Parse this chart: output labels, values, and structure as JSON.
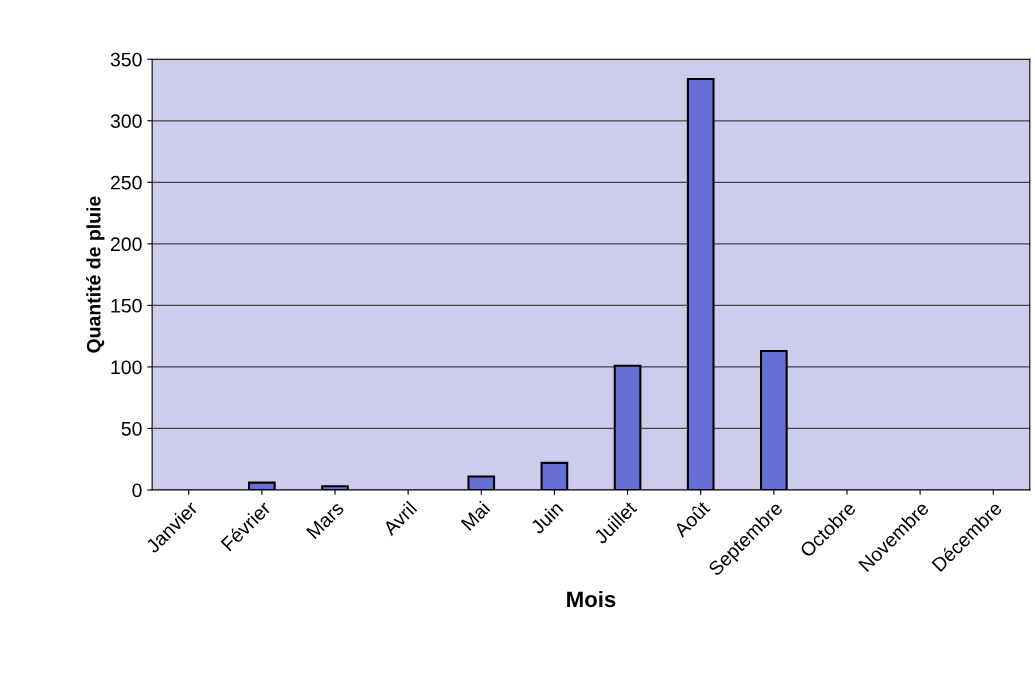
{
  "chart_data": {
    "type": "bar",
    "xlabel": "Mois",
    "ylabel": "Quantité de pluie",
    "categories": [
      "Janvier",
      "Février",
      "Mars",
      "Avril",
      "Mai",
      "Juin",
      "Juillet",
      "Août",
      "Septembre",
      "Octobre",
      "Novembre",
      "Décembre"
    ],
    "values": [
      0,
      6,
      3,
      0,
      11,
      22,
      101,
      334,
      113,
      0,
      0,
      0
    ],
    "color": "#6670d4",
    "ylim": [
      0,
      350
    ],
    "yticks": [
      0,
      50,
      100,
      150,
      200,
      250,
      300,
      350
    ],
    "grid": "y",
    "legend": false
  }
}
